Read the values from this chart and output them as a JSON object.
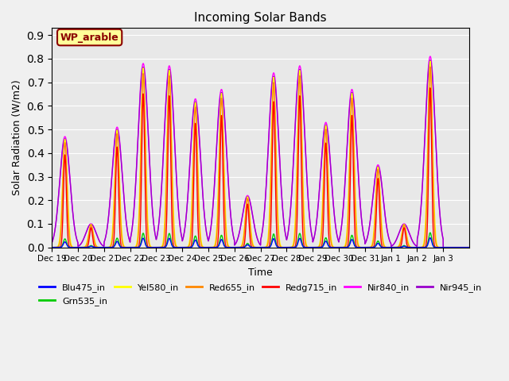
{
  "title": "Incoming Solar Bands",
  "xlabel": "Time",
  "ylabel": "Solar Radiation (W/m2)",
  "annotation": "WP_arable",
  "annotation_color": "#8B0000",
  "annotation_bg": "#FFFF99",
  "ylim": [
    0.0,
    0.93
  ],
  "yticks": [
    0.0,
    0.1,
    0.2,
    0.3,
    0.4,
    0.5,
    0.6,
    0.7,
    0.8,
    0.9
  ],
  "plot_bg": "#E8E8E8",
  "series": {
    "Blu475_in": {
      "color": "#0000FF",
      "lw": 1.0
    },
    "Grn535_in": {
      "color": "#00CC00",
      "lw": 1.0
    },
    "Yel580_in": {
      "color": "#FFFF00",
      "lw": 1.0
    },
    "Red655_in": {
      "color": "#FF8800",
      "lw": 1.0
    },
    "Redg715_in": {
      "color": "#FF0000",
      "lw": 1.0
    },
    "Nir840_in": {
      "color": "#FF00FF",
      "lw": 1.0
    },
    "Nir945_in": {
      "color": "#9900CC",
      "lw": 1.0
    }
  },
  "xtick_labels": [
    "Dec 19",
    "Dec 20",
    "Dec 21",
    "Dec 22",
    "Dec 23",
    "Dec 24",
    "Dec 25",
    "Dec 26",
    "Dec 27",
    "Dec 28",
    "Dec 29",
    "Dec 30",
    "Dec 31",
    "Jan 1",
    "Jan 2",
    "Jan 3"
  ],
  "n_days": 16,
  "peaks": [
    0.47,
    0.1,
    0.51,
    0.78,
    0.77,
    0.63,
    0.67,
    0.22,
    0.74,
    0.77,
    0.53,
    0.67,
    0.35,
    0.1,
    0.81,
    0.0
  ],
  "nir_scale": 1.0,
  "yel_scale": 0.975,
  "ora_scale": 0.945,
  "red_scale": 0.835,
  "grn_scale": 0.077,
  "blu_scale": 0.05,
  "nir945_scale": 0.98,
  "narrow_sigma": 0.055,
  "wide_sigma": 0.2
}
